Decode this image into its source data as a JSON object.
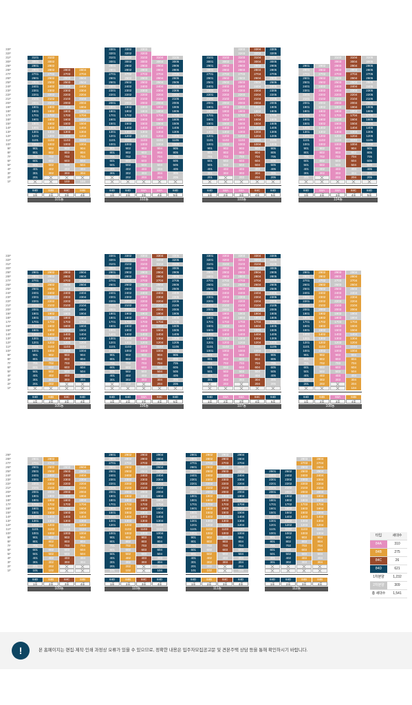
{
  "buildings": [
    {
      "name": "101동",
      "lines": [
        "1호",
        "2호",
        "3호",
        "4호"
      ],
      "types": [
        "84D",
        "84B",
        "84C",
        "84B"
      ],
      "top": [
        31,
        31,
        28,
        28
      ],
      "pilotis": [
        [
          1
        ],
        [
          1,
          2
        ],
        [
          2
        ],
        [
          2
        ]
      ]
    },
    {
      "name": "102동",
      "lines": [
        "1호",
        "2호",
        "3호",
        "4호",
        "5호"
      ],
      "types": [
        "84D",
        "84D",
        "84A",
        "84A",
        "84D"
      ],
      "top": [
        33,
        33,
        33,
        31,
        31
      ],
      "pilotis": [
        [
          1,
          2
        ],
        [
          1
        ],
        [
          1
        ],
        [
          1
        ],
        [
          1
        ]
      ]
    },
    {
      "name": "103동",
      "lines": [
        "1호",
        "2호",
        "3호",
        "4호",
        "5호"
      ],
      "types": [
        "84D",
        "84A",
        "84A",
        "84C",
        "84D"
      ],
      "top": [
        31,
        31,
        33,
        33,
        33
      ],
      "pilotis": [
        [
          1
        ],
        [
          1,
          2
        ],
        [
          1
        ],
        [
          1
        ],
        [
          1
        ]
      ]
    },
    {
      "name": "104동",
      "lines": [
        "1호",
        "2호",
        "3호",
        "4호",
        "5호"
      ],
      "types": [
        "84D",
        "84A",
        "84A",
        "84C",
        "84D"
      ],
      "top": [
        29,
        29,
        31,
        31,
        31
      ],
      "pilotis": [
        [
          1
        ],
        [
          1,
          2
        ],
        [
          1
        ],
        [
          1
        ],
        [
          1
        ]
      ]
    },
    {
      "name": "105동",
      "lines": [
        "1호",
        "2호",
        "3호",
        "4호"
      ],
      "types": [
        "84D",
        "84B",
        "84C",
        "84D"
      ],
      "top": [
        29,
        29,
        29,
        29
      ],
      "pilotis": [
        [
          1
        ],
        [
          1
        ],
        [
          1,
          2
        ],
        [
          1,
          2
        ]
      ]
    },
    {
      "name": "106동",
      "lines": [
        "1호",
        "2호",
        "3호",
        "4호",
        "5호"
      ],
      "types": [
        "84D",
        "84D",
        "84A",
        "84C",
        "84D"
      ],
      "top": [
        33,
        33,
        33,
        33,
        33
      ],
      "pilotis": [
        [
          1,
          2
        ],
        [
          1
        ],
        [
          1,
          2
        ],
        [
          1
        ],
        [
          1
        ]
      ]
    },
    {
      "name": "107동",
      "lines": [
        "1호",
        "2호",
        "3호",
        "4호",
        "5호"
      ],
      "types": [
        "84D",
        "84A",
        "84A",
        "84C",
        "84D"
      ],
      "top": [
        33,
        33,
        33,
        33,
        33
      ],
      "pilotis": [
        [
          1,
          2
        ],
        [
          1
        ],
        [
          1,
          2
        ],
        [
          1
        ],
        [
          1
        ]
      ]
    },
    {
      "name": "108동",
      "lines": [
        "1호",
        "2호",
        "3호",
        "4호"
      ],
      "types": [
        "84D",
        "84B",
        "84A",
        "84B"
      ],
      "top": [
        29,
        29,
        29,
        29
      ],
      "pilotis": [
        [
          1
        ],
        [
          1
        ],
        [
          1,
          2
        ],
        []
      ]
    },
    {
      "name": "109동",
      "lines": [
        "1호",
        "2호",
        "3호",
        "4호"
      ],
      "types": [
        "84D",
        "84B",
        "84C",
        "84B"
      ],
      "top": [
        28,
        28,
        26,
        26
      ],
      "pilotis": [
        [],
        [],
        [
          1,
          2
        ],
        [
          1,
          2
        ]
      ]
    },
    {
      "name": "110동",
      "lines": [
        "1호",
        "2호",
        "3호",
        "4호"
      ],
      "types": [
        "84D",
        "84B",
        "84C",
        "84D"
      ],
      "top": [
        29,
        29,
        29,
        29
      ],
      "pilotis": [
        [],
        [],
        [
          1,
          2
        ],
        []
      ]
    },
    {
      "name": "111동",
      "lines": [
        "1호",
        "2호",
        "3호",
        "4호"
      ],
      "types": [
        "84D",
        "84B",
        "84C",
        "84D"
      ],
      "top": [
        29,
        29,
        29,
        29
      ],
      "pilotis": [
        [],
        [],
        [
          1,
          2
        ],
        []
      ]
    },
    {
      "name": "112동",
      "lines": [
        "1호",
        "2호",
        "3호",
        "4호"
      ],
      "types": [
        "84D",
        "84D",
        "84B",
        "84B"
      ],
      "top": [
        25,
        25,
        28,
        28
      ],
      "pilotis": [
        [
          1,
          2
        ],
        [
          1,
          2
        ],
        [
          1,
          2
        ],
        [
          1,
          2
        ]
      ]
    }
  ],
  "floor_labels_row1": [
    "33F",
    "32F",
    "31F",
    "30F",
    "29F",
    "28F",
    "27F",
    "26F",
    "25F",
    "24F",
    "23F",
    "22F",
    "21F",
    "20F",
    "19F",
    "18F",
    "17F",
    "16F",
    "15F",
    "14F",
    "13F",
    "12F",
    "11F",
    "10F",
    "9F",
    "8F",
    "7F",
    "6F",
    "5F",
    "4F",
    "3F",
    "2F",
    "1F"
  ],
  "floor_labels_row3": [
    "29F",
    "28F",
    "27F",
    "26F",
    "25F",
    "24F",
    "23F",
    "22F",
    "21F",
    "20F",
    "19F",
    "18F",
    "17F",
    "16F",
    "15F",
    "14F",
    "13F",
    "12F",
    "11F",
    "10F",
    "9F",
    "8F",
    "7F",
    "6F",
    "5F",
    "4F",
    "3F",
    "2F",
    "1F"
  ],
  "legend": {
    "header_type": "타입",
    "header_count": "세대수",
    "rows": [
      {
        "type": "84A",
        "count": "310",
        "color": "#e58ebf"
      },
      {
        "type": "84B",
        "count": "275",
        "color": "#e3a03b"
      },
      {
        "type": "84C",
        "count": "26",
        "color": "#9a4a2b"
      },
      {
        "type": "84D",
        "count": "621",
        "color": "#0e4562"
      },
      {
        "type": "1차분양",
        "count": "1,232",
        "color": "#ffffff"
      },
      {
        "type": "2차분양",
        "count": "309",
        "color": "#c9c9c9"
      },
      {
        "type": "총 세대수",
        "count": "1,541",
        "color": "#ffffff"
      }
    ]
  },
  "notice": {
    "icon": "exclamation-icon",
    "text": "본 홈페이지는 편집·제작·인쇄 과정상 오류가 있을 수 있으므로, 정확한 내용은 입주자모집공고문 및 견본주택 상담 등을 통해 확인하시기 바랍니다."
  },
  "colors": {
    "84A": "#e58ebf",
    "84B": "#e3a03b",
    "84C": "#9a4a2b",
    "84D": "#0e4562",
    "sold": "#c9c9c9"
  }
}
